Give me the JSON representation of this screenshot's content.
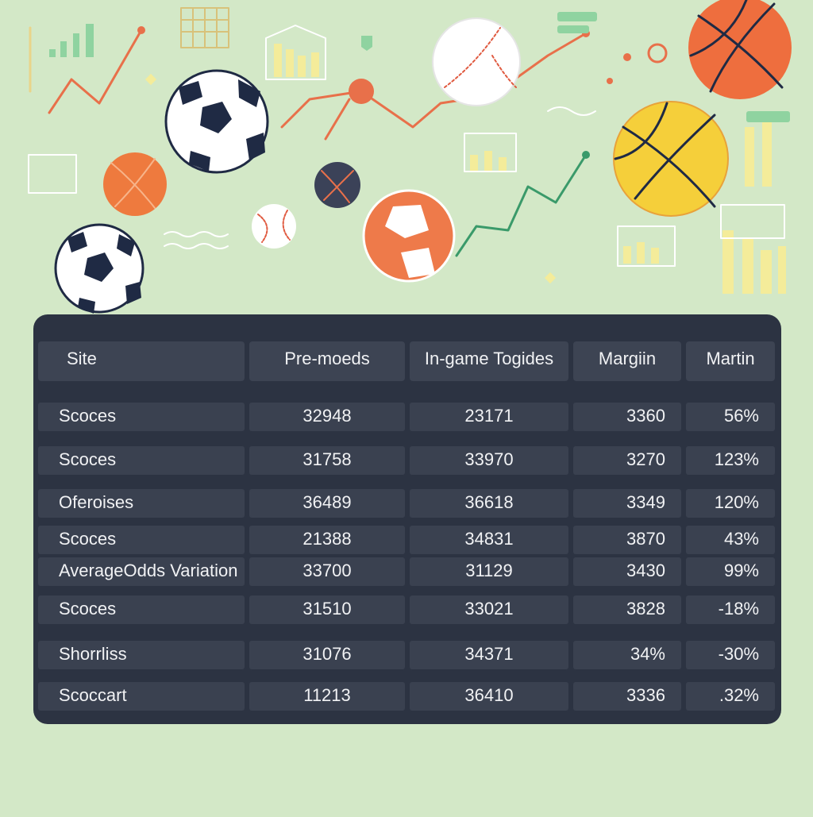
{
  "table": {
    "header": [
      "Site",
      "Pre-moeds",
      "In-game Togides",
      "Margiin",
      "Martin"
    ],
    "rows": [
      [
        "Scoces",
        "32948",
        "23171",
        "3360",
        "56%"
      ],
      [
        "Scoces",
        "31758",
        "33970",
        "3270",
        "123%"
      ],
      [
        "Oferoises",
        "36489",
        "36618",
        "3349",
        "120%"
      ],
      [
        "Scoces",
        "21388",
        "34831",
        "3870",
        "43%"
      ],
      [
        "AverageOdds Variation",
        "33700",
        "31129",
        "3430",
        "99%"
      ],
      [
        "Scoces",
        "31510",
        "33021",
        "3828",
        "-18%"
      ],
      [
        "Shorrliss",
        "31076",
        "34371",
        "34%",
        "-30%"
      ],
      [
        "Scoccart",
        "11213",
        "36410",
        "3336",
        ".32%"
      ]
    ]
  }
}
